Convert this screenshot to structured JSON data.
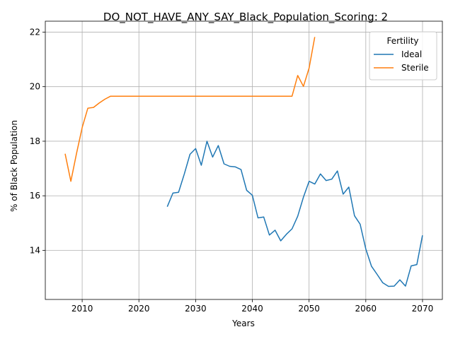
{
  "chart_data": {
    "type": "line",
    "title": "DO_NOT_HAVE_ANY_SAY_Black_Population_Scoring: 2",
    "xlabel": "Years",
    "ylabel": "% of Black Population",
    "xlim": [
      2003.5,
      2073.5
    ],
    "ylim": [
      12.2,
      22.4
    ],
    "xticks": [
      2010,
      2020,
      2030,
      2040,
      2050,
      2060,
      2070
    ],
    "yticks": [
      14,
      16,
      18,
      20,
      22
    ],
    "grid": true,
    "legend": {
      "title": "Fertility",
      "placement": "top-right"
    },
    "series": [
      {
        "name": "Ideal",
        "color": "#1f77b4",
        "x": [
          2025,
          2026,
          2027,
          2028,
          2029,
          2030,
          2031,
          2032,
          2033,
          2034,
          2035,
          2036,
          2037,
          2038,
          2039,
          2040,
          2041,
          2042,
          2043,
          2044,
          2045,
          2046,
          2047,
          2048,
          2049,
          2050,
          2051,
          2052,
          2053,
          2054,
          2055,
          2056,
          2057,
          2058,
          2059,
          2060,
          2061,
          2062,
          2063,
          2064,
          2065,
          2066,
          2067,
          2068,
          2069,
          2070
        ],
        "y": [
          15.6,
          16.1,
          16.13,
          16.8,
          17.52,
          17.73,
          17.12,
          18.0,
          17.42,
          17.84,
          17.17,
          17.08,
          17.06,
          16.96,
          16.2,
          16.02,
          15.19,
          15.22,
          14.56,
          14.74,
          14.35,
          14.59,
          14.79,
          15.25,
          15.95,
          16.53,
          16.43,
          16.8,
          16.56,
          16.61,
          16.91,
          16.06,
          16.32,
          15.27,
          14.96,
          14.05,
          13.42,
          13.12,
          12.81,
          12.68,
          12.69,
          12.92,
          12.69,
          13.43,
          13.48,
          14.55
        ]
      },
      {
        "name": "Sterile",
        "color": "#ff7f0e",
        "x": [
          2007,
          2008,
          2009,
          2010,
          2011,
          2012,
          2013,
          2014,
          2015,
          2016,
          2017,
          2018,
          2019,
          2020,
          2021,
          2022,
          2023,
          2024,
          2025,
          2026,
          2027,
          2028,
          2029,
          2030,
          2031,
          2032,
          2033,
          2034,
          2035,
          2036,
          2037,
          2038,
          2039,
          2040,
          2041,
          2042,
          2043,
          2044,
          2045,
          2046,
          2047,
          2048,
          2049,
          2050,
          2051
        ],
        "y": [
          17.54,
          16.53,
          17.55,
          18.5,
          19.21,
          19.24,
          19.4,
          19.54,
          19.65,
          19.65,
          19.65,
          19.65,
          19.65,
          19.65,
          19.65,
          19.65,
          19.65,
          19.65,
          19.65,
          19.65,
          19.65,
          19.65,
          19.65,
          19.65,
          19.65,
          19.65,
          19.65,
          19.65,
          19.65,
          19.65,
          19.65,
          19.65,
          19.65,
          19.65,
          19.65,
          19.65,
          19.65,
          19.65,
          19.65,
          19.65,
          19.65,
          20.41,
          20.01,
          20.68,
          21.82
        ]
      }
    ]
  }
}
